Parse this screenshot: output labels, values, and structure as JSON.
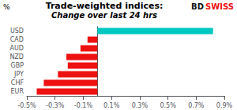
{
  "chart_data": {
    "type": "bar",
    "orientation": "horizontal",
    "title": "Trade-weighted indices:",
    "subtitle": "Change over last 24 hrs",
    "ylabel": "%",
    "categories": [
      "USD",
      "CAD",
      "AUD",
      "NZD",
      "GBP",
      "JPY",
      "CHF",
      "EUR"
    ],
    "values": [
      0.0082,
      -0.0007,
      -0.0012,
      -0.0022,
      -0.0021,
      -0.0028,
      -0.0038,
      -0.0043
    ],
    "colors": [
      "#00C8C0",
      "#EE1111",
      "#EE1111",
      "#EE1111",
      "#EE1111",
      "#EE1111",
      "#EE1111",
      "#EE1111"
    ],
    "xlim": [
      -0.005,
      0.009
    ],
    "xticks": [
      {
        "value": -0.005,
        "label": "-0.5%"
      },
      {
        "value": -0.003,
        "label": "-0.3%"
      },
      {
        "value": -0.001,
        "label": "-0.1%"
      },
      {
        "value": 0.001,
        "label": "0.1%"
      },
      {
        "value": 0.003,
        "label": "0.3%"
      },
      {
        "value": 0.005,
        "label": "0.5%"
      },
      {
        "value": 0.007,
        "label": "0.7%"
      },
      {
        "value": 0.009,
        "label": "0.9%"
      }
    ],
    "grid": false,
    "annotations": [
      {
        "text": "BD",
        "color": "#111111"
      },
      {
        "text": "SWISS",
        "color": "#EE1111"
      }
    ]
  }
}
